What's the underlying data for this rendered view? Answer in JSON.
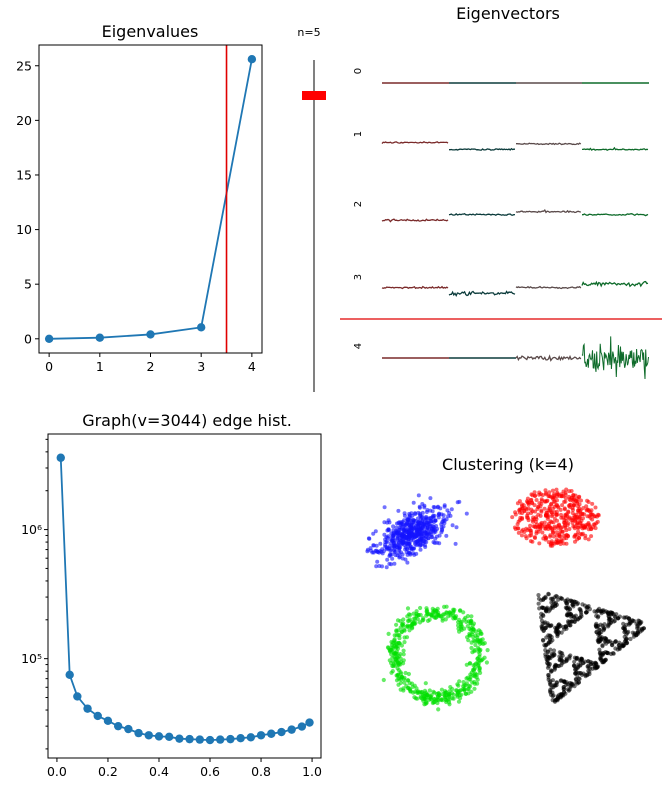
{
  "colors": {
    "line": "#1f77b4",
    "threshold": "#e00000",
    "slider_handle": "#ff0000",
    "ev_maroon": "#7a2a2a",
    "ev_dark": "#0b3b3b",
    "ev_grey": "#5a4a4a",
    "ev_green": "#0e6b2a",
    "cluster_blue": "#1414ff",
    "cluster_red": "#ff0000",
    "cluster_green": "#00e000",
    "cluster_black": "#000000"
  },
  "slider": {
    "label": "n=5",
    "value": 5
  },
  "chart_data": [
    {
      "id": "eigenvalues",
      "type": "line",
      "title": "Eigenvalues",
      "x": [
        0,
        1,
        2,
        3,
        4
      ],
      "values": [
        0.0,
        0.1,
        0.4,
        1.05,
        25.6
      ],
      "xlim": [
        -0.2,
        4.2
      ],
      "ylim": [
        -1.3,
        26.9
      ],
      "xticks": [
        0,
        1,
        2,
        3,
        4
      ],
      "yticks": [
        0,
        5,
        10,
        15,
        20,
        25
      ],
      "vline_x": 3.5
    },
    {
      "id": "eigenvectors",
      "type": "line",
      "title": "Eigenvectors",
      "row_labels": [
        "0",
        "1",
        "2",
        "3",
        "4"
      ],
      "segment_colors": [
        "ev_maroon",
        "ev_dark",
        "ev_grey",
        "ev_green"
      ],
      "rows": [
        {
          "levels": [
            0.0,
            0.0,
            0.0,
            0.0
          ],
          "noise": [
            0,
            0,
            0,
            0
          ]
        },
        {
          "levels": [
            0.5,
            -0.5,
            0.3,
            -0.5
          ],
          "noise": [
            0.02,
            0.02,
            0.02,
            0.02
          ]
        },
        {
          "levels": [
            -0.6,
            0.2,
            0.6,
            0.2
          ],
          "noise": [
            0.03,
            0.02,
            0.02,
            0.02
          ]
        },
        {
          "levels": [
            0.2,
            -0.6,
            0.2,
            0.7
          ],
          "noise": [
            0.02,
            0.05,
            0.02,
            0.06
          ]
        },
        {
          "levels": [
            0.0,
            0.0,
            0.0,
            0.0
          ],
          "noise": [
            0.0,
            0.0,
            0.05,
            1.0
          ]
        }
      ],
      "separator_after_row": 3
    },
    {
      "id": "edge-hist",
      "type": "line",
      "title": "Graph(v=3044) edge hist.",
      "yscale": "log",
      "x": [
        0.015,
        0.05,
        0.08,
        0.12,
        0.16,
        0.2,
        0.24,
        0.28,
        0.32,
        0.36,
        0.4,
        0.44,
        0.48,
        0.52,
        0.56,
        0.6,
        0.64,
        0.68,
        0.72,
        0.76,
        0.8,
        0.84,
        0.88,
        0.92,
        0.96,
        0.99
      ],
      "values": [
        3600000,
        75000,
        51000,
        41000,
        36000,
        33000,
        30000,
        28500,
        26500,
        25500,
        25000,
        24800,
        24000,
        23800,
        23600,
        23400,
        23600,
        23800,
        24200,
        24600,
        25500,
        26200,
        27000,
        28200,
        29800,
        32000
      ],
      "xlim": [
        -0.035,
        1.035
      ],
      "ylim": [
        17000,
        5500000
      ],
      "xticks": [
        0.0,
        0.2,
        0.4,
        0.6,
        0.8,
        1.0
      ],
      "xtick_labels": [
        "0.0",
        "0.2",
        "0.4",
        "0.6",
        "0.8",
        "1.0"
      ],
      "yticks": [
        100000,
        1000000
      ],
      "ytick_labels": [
        "10⁵",
        "10⁶"
      ]
    },
    {
      "id": "clustering",
      "type": "scatter",
      "title": "Clustering (k=4)",
      "k": 4,
      "clusters": [
        {
          "shape": "gaussian_blob",
          "color": "cluster_blue"
        },
        {
          "shape": "filled_ellipse",
          "color": "cluster_red"
        },
        {
          "shape": "ring",
          "color": "cluster_green"
        },
        {
          "shape": "sierpinski_triangle",
          "color": "cluster_black"
        }
      ]
    }
  ]
}
